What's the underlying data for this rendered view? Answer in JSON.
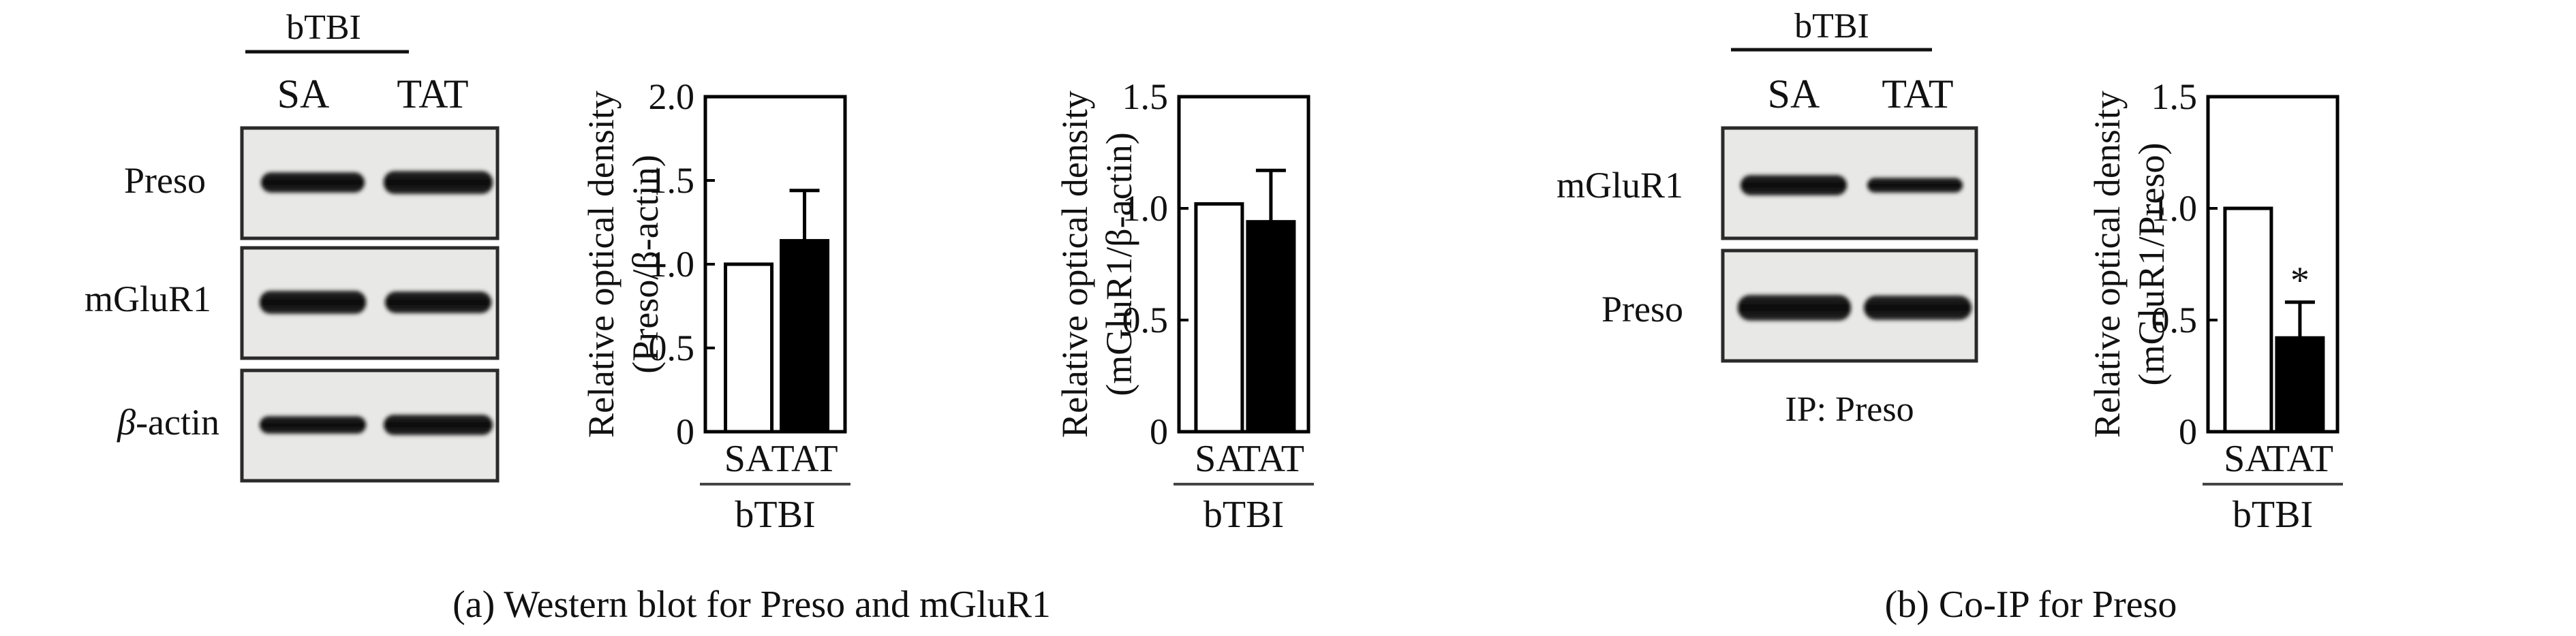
{
  "panel_a": {
    "caption": "(a) Western blot for Preso and mGluR1",
    "blot": {
      "group_label": "bTBI",
      "lanes": [
        "SA",
        "TAT"
      ],
      "rows": [
        {
          "label": "Preso",
          "beta": ""
        },
        {
          "label": "mGluR1",
          "beta": ""
        },
        {
          "label": "-actin",
          "beta": "β"
        }
      ]
    }
  },
  "panel_b": {
    "caption": "(b) Co-IP for Preso",
    "blot": {
      "group_label": "bTBI",
      "lanes": [
        "SA",
        "TAT"
      ],
      "rows": [
        {
          "label": "mGluR1"
        },
        {
          "label": "Preso"
        }
      ],
      "footer": "IP: Preso"
    }
  },
  "chart_data": [
    {
      "type": "bar",
      "categories": [
        "SA",
        "TAT"
      ],
      "group_label": "bTBI",
      "ylabel_line1": "Relative optical density",
      "ylabel_line2": "(Preso/β-actin)",
      "ylim": [
        0,
        2.0
      ],
      "yticks": [
        "0",
        "0.5",
        "1.0",
        "1.5",
        "2.0"
      ],
      "ytick_values": [
        0,
        0.5,
        1.0,
        1.5,
        2.0
      ],
      "values": [
        1.0,
        1.14
      ],
      "errors": [
        0,
        0.3
      ],
      "fills": [
        "#ffffff",
        "#000000"
      ],
      "annotations": [
        "",
        ""
      ],
      "grid": false
    },
    {
      "type": "bar",
      "categories": [
        "SA",
        "TAT"
      ],
      "group_label": "bTBI",
      "ylabel_line1": "Relative optical density",
      "ylabel_line2": "(mGluR1/β-actin)",
      "ylim": [
        0,
        1.5
      ],
      "yticks": [
        "0",
        "0.5",
        "1.0",
        "1.5"
      ],
      "ytick_values": [
        0,
        0.5,
        1.0,
        1.5
      ],
      "values": [
        1.02,
        0.94
      ],
      "errors": [
        0,
        0.23
      ],
      "fills": [
        "#ffffff",
        "#000000"
      ],
      "annotations": [
        "",
        ""
      ],
      "grid": false
    },
    {
      "type": "bar",
      "categories": [
        "SA",
        "TAT"
      ],
      "group_label": "bTBI",
      "ylabel_line1": "Relative optical density",
      "ylabel_line2": "(mGluR1/Preso)",
      "ylim": [
        0,
        1.5
      ],
      "yticks": [
        "0",
        "0.5",
        "1.0",
        "1.5"
      ],
      "ytick_values": [
        0,
        0.5,
        1.0,
        1.5
      ],
      "values": [
        1.0,
        0.42
      ],
      "errors": [
        0,
        0.16
      ],
      "fills": [
        "#ffffff",
        "#000000"
      ],
      "annotations": [
        "",
        "*"
      ],
      "grid": false
    }
  ]
}
